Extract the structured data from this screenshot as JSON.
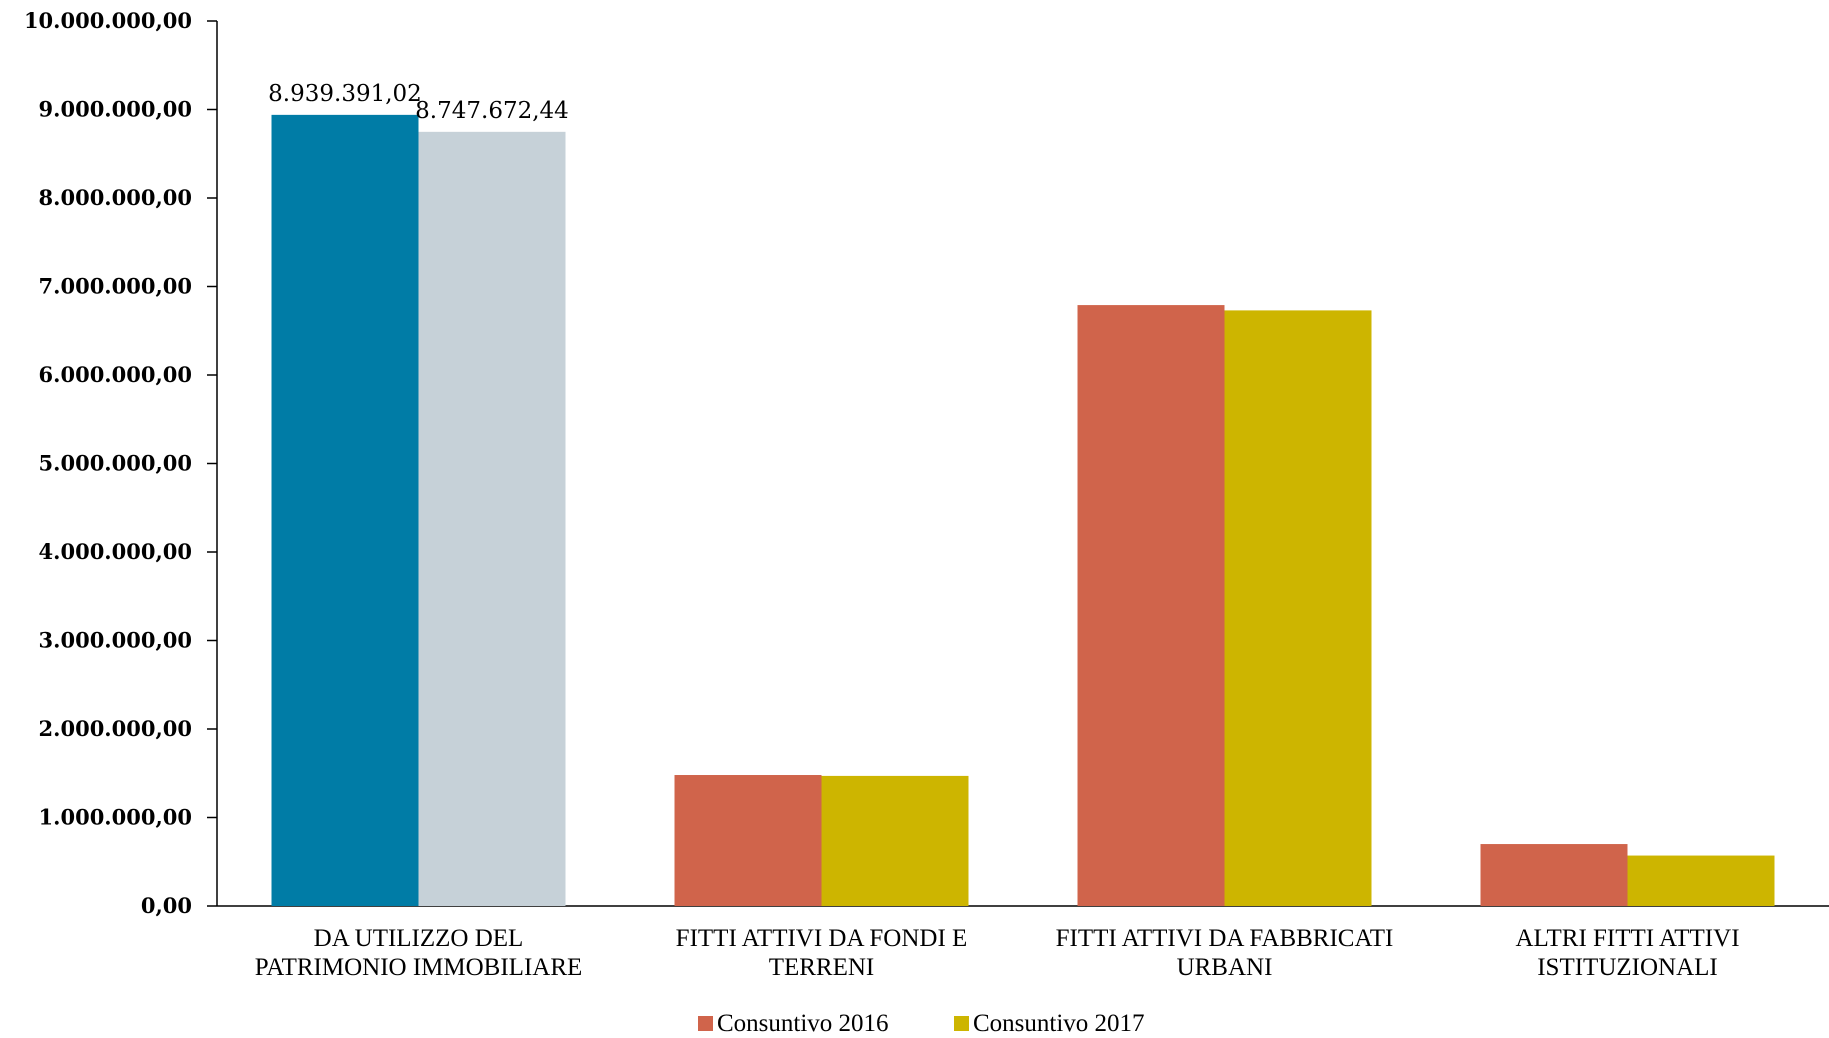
{
  "chart_data": {
    "type": "bar",
    "title": "",
    "xlabel": "",
    "ylabel": "",
    "ylim": [
      0,
      10000000
    ],
    "grid": false,
    "legend_position": "bottom",
    "y_ticks": [
      {
        "value": 0,
        "label": "0,00"
      },
      {
        "value": 1000000,
        "label": "1.000.000,00"
      },
      {
        "value": 2000000,
        "label": "2.000.000,00"
      },
      {
        "value": 3000000,
        "label": "3.000.000,00"
      },
      {
        "value": 4000000,
        "label": "4.000.000,00"
      },
      {
        "value": 5000000,
        "label": "5.000.000,00"
      },
      {
        "value": 6000000,
        "label": "6.000.000,00"
      },
      {
        "value": 7000000,
        "label": "7.000.000,00"
      },
      {
        "value": 8000000,
        "label": "8.000.000,00"
      },
      {
        "value": 9000000,
        "label": "9.000.000,00"
      },
      {
        "value": 10000000,
        "label": "10.000.000,00"
      }
    ],
    "categories": [
      [
        "DA UTILIZZO DEL",
        "PATRIMONIO IMMOBILIARE"
      ],
      [
        "FITTI ATTIVI DA FONDI E",
        "TERRENI"
      ],
      [
        "FITTI ATTIVI DA FABBRICATI",
        "URBANI"
      ],
      [
        "ALTRI FITTI ATTIVI",
        "ISTITUZIONALI"
      ]
    ],
    "series": [
      {
        "name": "Consuntivo 2016",
        "color": "#d0644b",
        "values": [
          8939391.02,
          1480000,
          6790000,
          700000
        ],
        "point_colors": [
          "#007ca6",
          null,
          null,
          null
        ],
        "data_labels": [
          "8.939.391,02",
          null,
          null,
          null
        ]
      },
      {
        "name": "Consuntivo 2017",
        "color": "#cdb500",
        "values": [
          8747672.44,
          1470000,
          6730000,
          570000
        ],
        "point_colors": [
          "#c6d1d8",
          null,
          null,
          null
        ],
        "data_labels": [
          "8.747.672,44",
          null,
          null,
          null
        ]
      }
    ]
  }
}
